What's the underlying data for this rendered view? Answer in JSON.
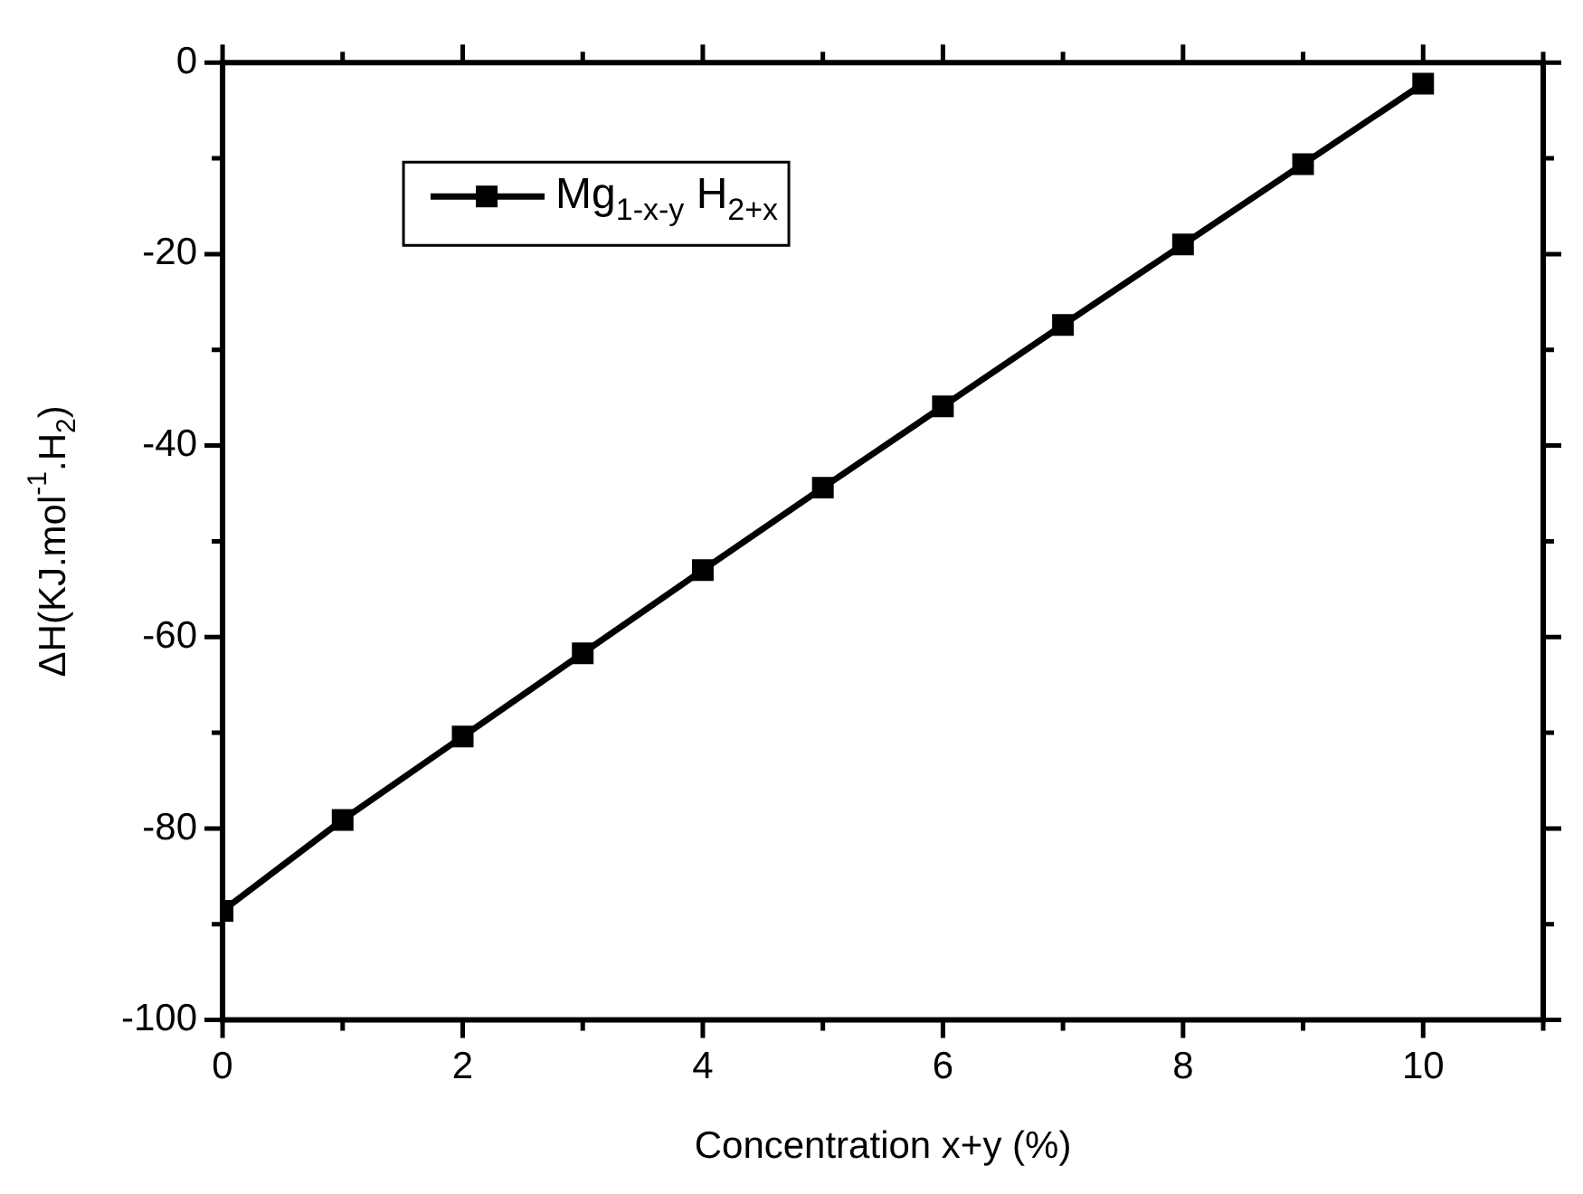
{
  "chart_data": {
    "type": "line",
    "xlabel": "Concentration x+y (%)",
    "ylabel": "ΔH(KJ.mol$^{-1}$.H$_{2}$)",
    "x": [
      0,
      1,
      2,
      3,
      4,
      5,
      6,
      7,
      8,
      9,
      10
    ],
    "series": [
      {
        "name": "Mg$_{1-x-y}$ H$_{2+x}$",
        "color": "#000000",
        "values": [
          -88.6,
          -79.1,
          -70.4,
          -61.7,
          -53.0,
          -44.4,
          -35.9,
          -27.4,
          -19.0,
          -10.6,
          -2.2
        ]
      }
    ],
    "xlim": [
      0,
      11
    ],
    "xticks": [
      0,
      {
        "value": 1,
        "label": null
      },
      2,
      {
        "value": 3,
        "label": null
      },
      4,
      {
        "value": 5,
        "label": null
      },
      6,
      {
        "value": 7,
        "label": null
      },
      8,
      {
        "value": 9,
        "label": null
      },
      10,
      {
        "value": 11,
        "label": null
      }
    ],
    "ylim": [
      -100,
      0
    ],
    "yticks": [
      -100,
      {
        "value": -90,
        "label": null
      },
      -80,
      {
        "value": -70,
        "label": null
      },
      -60,
      {
        "value": -50,
        "label": null
      },
      -40,
      {
        "value": -30,
        "label": null
      },
      -20,
      {
        "value": -10,
        "label": null
      },
      0
    ],
    "legend": "top left",
    "marker": "square",
    "line_style": "solid"
  }
}
